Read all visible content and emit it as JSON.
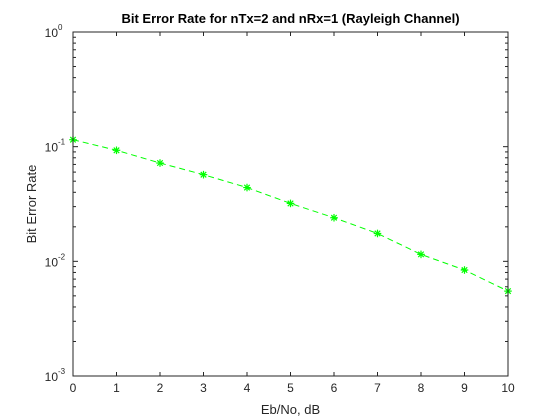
{
  "chart_data": {
    "type": "line",
    "title": "Bit Error Rate for nTx=2 and nRx=1 (Rayleigh Channel)",
    "xlabel": "Eb/No, dB",
    "ylabel": "Bit Error Rate",
    "xlim": [
      0,
      10
    ],
    "ylim": [
      0.001,
      1
    ],
    "yscale": "log",
    "grid": false,
    "x_ticks": [
      "0",
      "1",
      "2",
      "3",
      "4",
      "5",
      "6",
      "7",
      "8",
      "9",
      "10"
    ],
    "y_ticks": [
      {
        "value": 1,
        "base": "10",
        "exp": "0"
      },
      {
        "value": 0.1,
        "base": "10",
        "exp": "-1"
      },
      {
        "value": 0.01,
        "base": "10",
        "exp": "-2"
      },
      {
        "value": 0.001,
        "base": "10",
        "exp": "-3"
      }
    ],
    "series": [
      {
        "color": "#00ff00",
        "line_style": "dashed",
        "marker": "asterisk",
        "x": [
          0,
          1,
          2,
          3,
          4,
          5,
          6,
          7,
          8,
          9,
          10
        ],
        "y": [
          0.115,
          0.093,
          0.072,
          0.057,
          0.044,
          0.032,
          0.024,
          0.0175,
          0.0115,
          0.0084,
          0.0055
        ]
      }
    ]
  }
}
